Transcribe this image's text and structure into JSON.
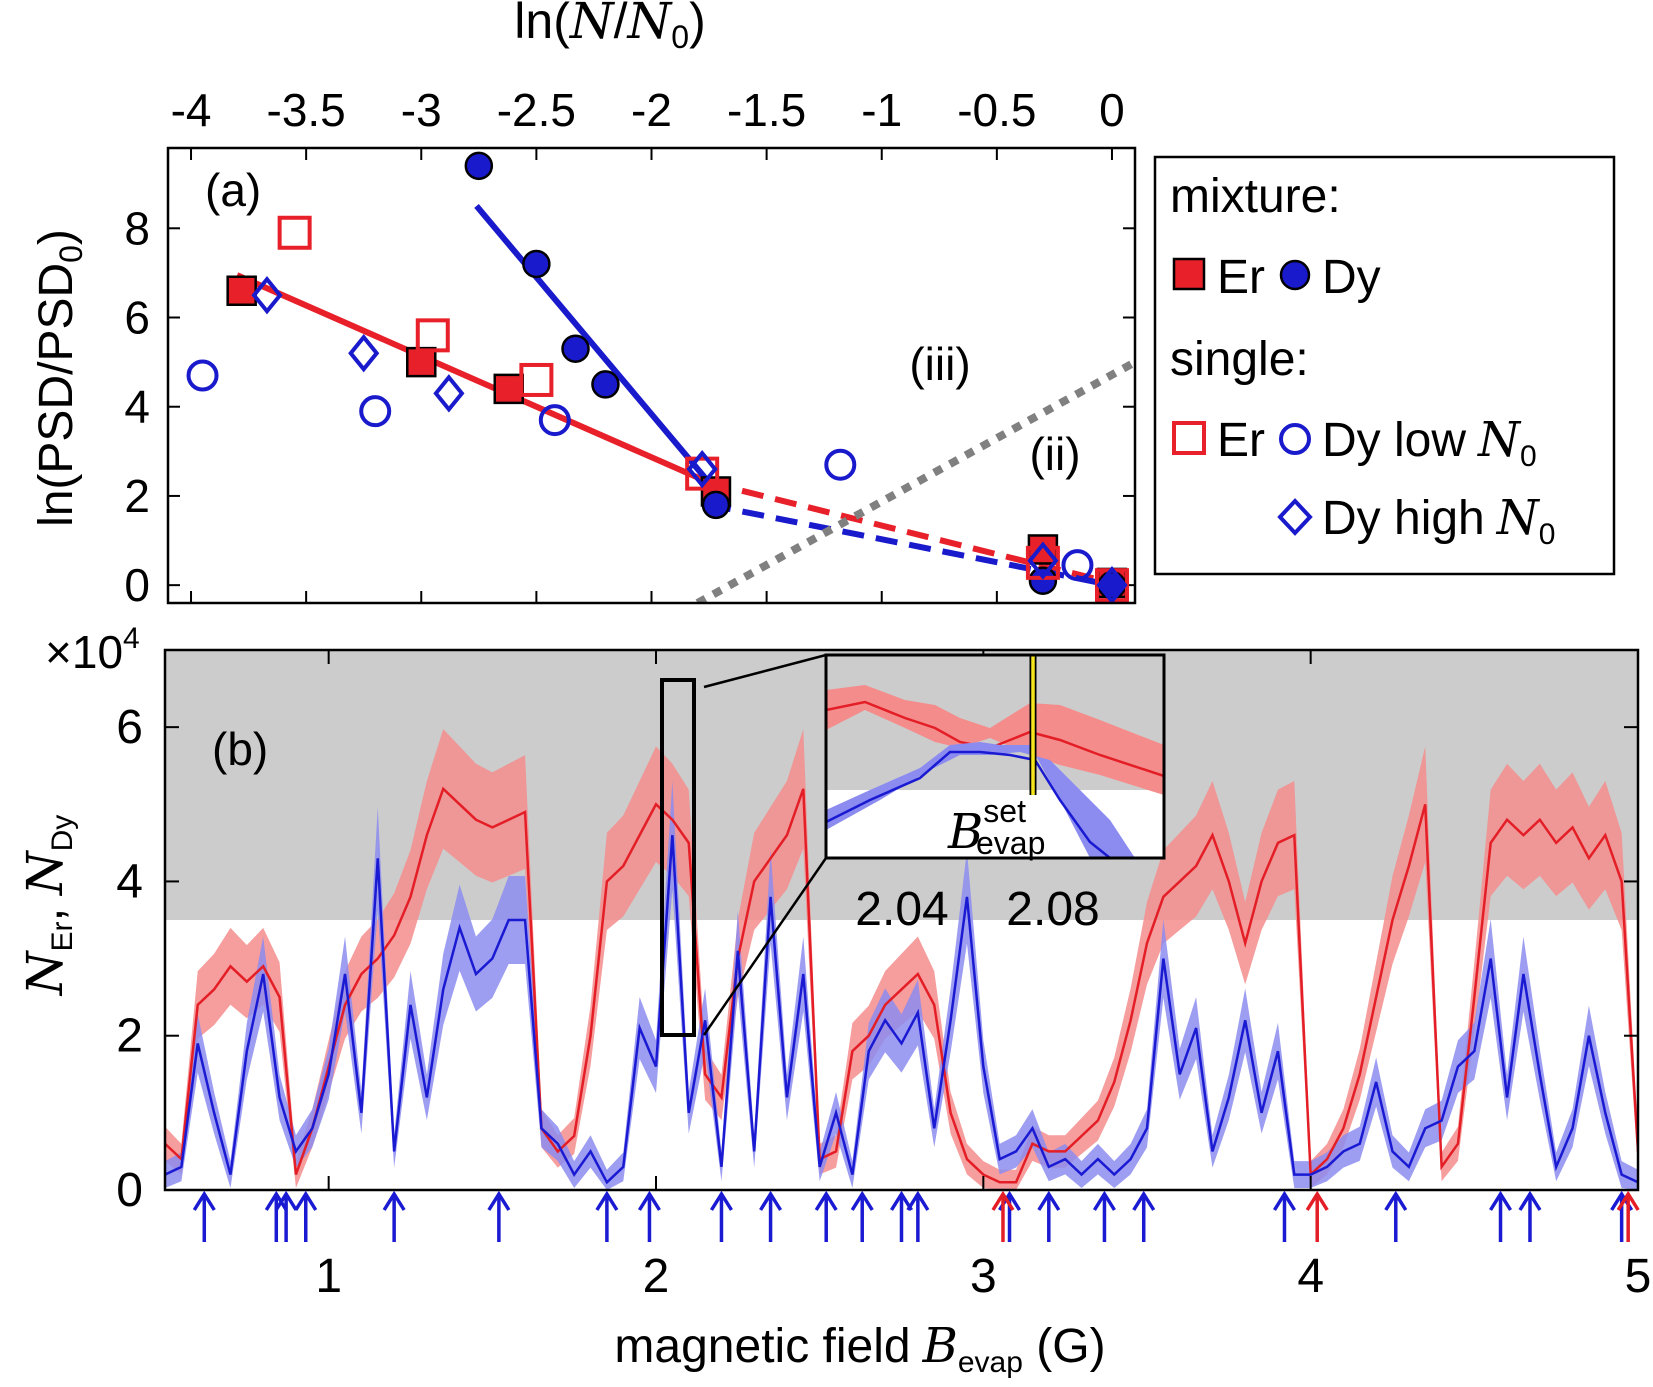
{
  "chart_data": [
    {
      "panel_label": "(a)",
      "type": "scatter",
      "xlabel_prefix": "ln(",
      "xlabel_N": "N",
      "xlabel_slash": "/",
      "xlabel_N0": "N",
      "xlabel_sub0": "0",
      "xlabel_suffix": ")",
      "ylabel_prefix": "ln(PSD/PSD",
      "ylabel_sub": "0",
      "ylabel_suffix": ")",
      "xlim": [
        -4.1,
        0.1
      ],
      "ylim": [
        -0.4,
        9.8
      ],
      "xticks": [
        -4,
        -3.5,
        -3,
        -2.5,
        -2,
        -1.5,
        -1,
        -0.5,
        0
      ],
      "xtick_labels": [
        "-4",
        "-3.5",
        "-3",
        "-2.5",
        "-2",
        "-1.5",
        "-1",
        "-0.5",
        "0"
      ],
      "yticks": [
        0,
        2,
        4,
        6,
        8
      ],
      "ytick_labels": [
        "0",
        "2",
        "4",
        "6",
        "8"
      ],
      "region_labels": [
        "(iii)",
        "(ii)"
      ],
      "series": [
        {
          "name": "Er",
          "group": "mixture",
          "marker": "filled-square",
          "color": "#e8202a",
          "x": [
            -3.78,
            -3.0,
            -2.62,
            -1.72,
            -0.3,
            0.0
          ],
          "y": [
            6.6,
            5.0,
            4.4,
            2.1,
            0.8,
            0.05
          ]
        },
        {
          "name": "Dy",
          "group": "mixture",
          "marker": "filled-circle",
          "color": "#1a1acd",
          "x": [
            -2.75,
            -2.5,
            -2.33,
            -2.2,
            -1.72,
            -0.3,
            0.0
          ],
          "y": [
            9.4,
            7.2,
            5.3,
            4.5,
            1.8,
            0.1,
            0.0
          ]
        },
        {
          "name": "Er",
          "group": "single",
          "marker": "open-square",
          "color": "#e8202a",
          "x": [
            -3.55,
            -2.95,
            -2.5,
            -1.78,
            -0.3,
            0.0
          ],
          "y": [
            7.9,
            5.6,
            4.6,
            2.5,
            0.5,
            0.0
          ]
        },
        {
          "name": "Dy low",
          "group": "single",
          "marker": "open-circle",
          "color": "#1a1acd",
          "x": [
            -3.95,
            -3.2,
            -2.42,
            -1.18,
            -0.15
          ],
          "y": [
            4.7,
            3.9,
            3.7,
            2.7,
            0.45
          ]
        },
        {
          "name": "Dy high",
          "group": "single",
          "marker": "open-diamond",
          "color": "#1a1acd",
          "x": [
            -3.67,
            -3.25,
            -2.88,
            -1.78,
            -0.3,
            0.0
          ],
          "y": [
            6.5,
            5.2,
            4.3,
            2.6,
            0.55,
            0.0
          ]
        }
      ],
      "fit_lines": [
        {
          "color": "#e8202a",
          "style": "solid",
          "x": [
            -3.8,
            -1.75
          ],
          "y": [
            6.95,
            2.3
          ]
        },
        {
          "color": "#1a1acd",
          "style": "solid",
          "x": [
            -2.76,
            -1.75
          ],
          "y": [
            8.5,
            2.3
          ]
        },
        {
          "color": "#e8202a",
          "style": "dashed",
          "x": [
            -1.75,
            0.0
          ],
          "y": [
            2.3,
            0.05
          ]
        },
        {
          "color": "#1a1acd",
          "style": "dashed",
          "x": [
            -1.75,
            0.0
          ],
          "y": [
            1.8,
            0.0
          ]
        },
        {
          "color": "#808080",
          "style": "dotted",
          "x": [
            -1.8,
            0.1
          ],
          "y": [
            -0.4,
            5.0
          ]
        }
      ],
      "legend": {
        "placement": "right",
        "heading_mixture": "mixture:",
        "heading_single": "single:",
        "er_label": "Er",
        "dy_label": "Dy",
        "dy_low_label": "Dy low",
        "dy_high_label": "Dy high",
        "n0_N": "N",
        "n0_sub": "0"
      }
    },
    {
      "panel_label": "(b)",
      "type": "line",
      "xlabel_text": "magnetic field",
      "xlabel_B": "B",
      "xlabel_sub": "evap",
      "xlabel_unit": "(G)",
      "ylabel_N1": "N",
      "ylabel_sub1": "Er",
      "ylabel_comma": ",",
      "ylabel_N2": "N",
      "ylabel_sub2": "Dy",
      "y_multiplier_times": "×",
      "y_multiplier_base": "10",
      "y_multiplier_exp": "4",
      "xlim": [
        0.5,
        5.0
      ],
      "ylim": [
        0,
        7
      ],
      "xticks": [
        1,
        2,
        3,
        4,
        5
      ],
      "xtick_labels": [
        "1",
        "2",
        "3",
        "4",
        "5"
      ],
      "yticks": [
        0,
        2,
        4,
        6
      ],
      "ytick_labels": [
        "0",
        "2",
        "4",
        "6"
      ],
      "shaded_region_y": [
        3.5,
        7
      ],
      "shaded_color": "#cccccc",
      "series": [
        {
          "name": "Er",
          "color": "#e41e26",
          "band_color": "#f58c8c",
          "x": [
            0.5,
            0.55,
            0.6,
            0.65,
            0.7,
            0.75,
            0.8,
            0.85,
            0.9,
            0.95,
            1.0,
            1.05,
            1.1,
            1.15,
            1.2,
            1.25,
            1.3,
            1.35,
            1.4,
            1.45,
            1.5,
            1.55,
            1.6,
            1.65,
            1.7,
            1.75,
            1.8,
            1.85,
            1.9,
            1.95,
            2.0,
            2.05,
            2.1,
            2.15,
            2.2,
            2.25,
            2.3,
            2.35,
            2.4,
            2.45,
            2.5,
            2.55,
            2.6,
            2.65,
            2.7,
            2.75,
            2.8,
            2.85,
            2.9,
            2.95,
            3.0,
            3.05,
            3.1,
            3.15,
            3.2,
            3.25,
            3.3,
            3.35,
            3.4,
            3.45,
            3.5,
            3.55,
            3.6,
            3.65,
            3.7,
            3.75,
            3.8,
            3.85,
            3.9,
            3.95,
            4.0,
            4.05,
            4.1,
            4.15,
            4.2,
            4.25,
            4.3,
            4.35,
            4.4,
            4.45,
            4.5,
            4.55,
            4.6,
            4.65,
            4.7,
            4.75,
            4.8,
            4.85,
            4.9,
            4.95,
            5.0
          ],
          "y": [
            0.6,
            0.4,
            2.4,
            2.6,
            2.9,
            2.7,
            2.9,
            2.5,
            0.2,
            0.8,
            1.6,
            2.4,
            2.8,
            3.0,
            3.3,
            3.8,
            4.6,
            5.2,
            5.0,
            4.8,
            4.7,
            4.8,
            4.9,
            0.8,
            0.5,
            0.7,
            2.0,
            4.0,
            4.2,
            4.6,
            5.0,
            4.8,
            4.5,
            1.5,
            1.2,
            3.0,
            4.0,
            4.3,
            4.6,
            5.2,
            0.4,
            0.5,
            1.8,
            2.0,
            2.4,
            2.6,
            2.8,
            2.4,
            1.0,
            0.4,
            0.2,
            0.1,
            0.1,
            0.6,
            0.5,
            0.5,
            0.7,
            0.9,
            1.4,
            2.2,
            3.2,
            3.8,
            4.0,
            4.2,
            4.6,
            4.0,
            3.2,
            4.0,
            4.5,
            4.6,
            0.2,
            0.4,
            0.8,
            1.5,
            2.5,
            3.5,
            4.2,
            5.0,
            0.3,
            0.6,
            2.5,
            4.5,
            4.8,
            4.6,
            4.8,
            4.5,
            4.7,
            4.3,
            4.6,
            4.0,
            0.5
          ]
        },
        {
          "name": "Dy",
          "color": "#1a1ad2",
          "band_color": "#8c8cf0",
          "x": [
            0.5,
            0.55,
            0.6,
            0.65,
            0.7,
            0.75,
            0.8,
            0.85,
            0.9,
            0.95,
            1.0,
            1.05,
            1.1,
            1.15,
            1.2,
            1.25,
            1.3,
            1.35,
            1.4,
            1.45,
            1.5,
            1.55,
            1.6,
            1.65,
            1.7,
            1.75,
            1.8,
            1.85,
            1.9,
            1.95,
            2.0,
            2.05,
            2.1,
            2.15,
            2.2,
            2.25,
            2.3,
            2.35,
            2.4,
            2.45,
            2.5,
            2.55,
            2.6,
            2.65,
            2.7,
            2.75,
            2.8,
            2.85,
            2.9,
            2.95,
            3.0,
            3.05,
            3.1,
            3.15,
            3.2,
            3.25,
            3.3,
            3.35,
            3.4,
            3.45,
            3.5,
            3.55,
            3.6,
            3.65,
            3.7,
            3.75,
            3.8,
            3.85,
            3.9,
            3.95,
            4.0,
            4.05,
            4.1,
            4.15,
            4.2,
            4.25,
            4.3,
            4.35,
            4.4,
            4.45,
            4.5,
            4.55,
            4.6,
            4.65,
            4.7,
            4.75,
            4.8,
            4.85,
            4.9,
            4.95,
            5.0
          ],
          "y": [
            0.2,
            0.3,
            1.9,
            1.0,
            0.2,
            1.8,
            2.8,
            1.2,
            0.5,
            0.8,
            1.5,
            2.8,
            1.0,
            4.3,
            0.5,
            2.4,
            1.2,
            2.6,
            3.4,
            2.8,
            3.0,
            3.5,
            3.5,
            0.8,
            0.6,
            0.2,
            0.5,
            0.1,
            0.3,
            2.1,
            1.6,
            4.6,
            1.0,
            2.2,
            0.3,
            3.1,
            0.5,
            3.8,
            1.2,
            2.8,
            0.3,
            1.0,
            0.2,
            1.8,
            2.2,
            1.9,
            2.3,
            0.8,
            2.2,
            3.8,
            1.6,
            0.4,
            0.5,
            0.8,
            0.3,
            0.4,
            0.2,
            0.4,
            0.2,
            0.4,
            0.8,
            3.0,
            1.5,
            2.1,
            0.5,
            1.2,
            2.2,
            1.0,
            1.8,
            0.2,
            0.2,
            0.3,
            0.5,
            0.6,
            1.4,
            0.5,
            0.3,
            0.8,
            0.9,
            1.6,
            1.8,
            3.0,
            1.2,
            2.8,
            1.5,
            0.3,
            0.8,
            2.0,
            1.0,
            0.2,
            0.1
          ]
        }
      ],
      "arrows": {
        "blue_x": [
          0.62,
          0.84,
          0.87,
          0.93,
          1.2,
          1.52,
          1.85,
          1.98,
          2.2,
          2.35,
          2.52,
          2.63,
          2.75,
          2.8,
          3.08,
          3.2,
          3.37,
          3.49,
          3.92,
          4.26,
          4.58,
          4.67,
          4.95
        ],
        "red_x": [
          3.06,
          4.02,
          4.97
        ]
      },
      "inset": {
        "tick_labels": [
          "2.04",
          "2.08"
        ],
        "tick_values": [
          2.04,
          2.08
        ],
        "marker_label_B": "B",
        "marker_label_sup": "set",
        "marker_label_sub": "evap",
        "marker_x": 2.077
      }
    }
  ]
}
